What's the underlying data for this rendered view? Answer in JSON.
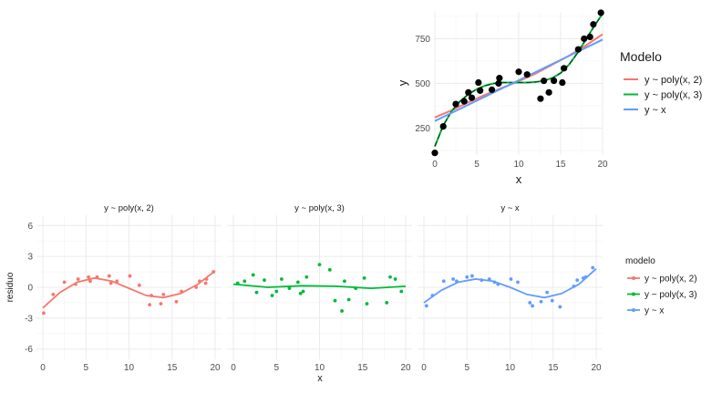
{
  "chart_data": [
    {
      "type": "scatter",
      "xlabel": "x",
      "ylabel": "y",
      "xlim": [
        0,
        20
      ],
      "ylim": [
        100,
        900
      ],
      "x_ticks": [
        0,
        5,
        10,
        15,
        20
      ],
      "y_ticks": [
        250,
        500,
        750
      ],
      "grid": true,
      "legend": {
        "title": "Modelo",
        "position": "right",
        "entries": [
          "y ~ poly(x, 2)",
          "y ~ poly(x, 3)",
          "y ~ x"
        ]
      },
      "colors": {
        "y ~ poly(x, 2)": "#F8766D",
        "y ~ poly(x, 3)": "#00BA38",
        "y ~ x": "#619CFF",
        "points": "#000000"
      },
      "points": [
        {
          "x": 0,
          "y": 112
        },
        {
          "x": 1,
          "y": 260
        },
        {
          "x": 2.5,
          "y": 385
        },
        {
          "x": 3.5,
          "y": 400
        },
        {
          "x": 4,
          "y": 450
        },
        {
          "x": 4.4,
          "y": 420
        },
        {
          "x": 5.2,
          "y": 505
        },
        {
          "x": 5.4,
          "y": 460
        },
        {
          "x": 6.8,
          "y": 465
        },
        {
          "x": 7.6,
          "y": 500
        },
        {
          "x": 7.7,
          "y": 530
        },
        {
          "x": 10,
          "y": 565
        },
        {
          "x": 11,
          "y": 550
        },
        {
          "x": 12.6,
          "y": 415
        },
        {
          "x": 13,
          "y": 515
        },
        {
          "x": 13.6,
          "y": 450
        },
        {
          "x": 14.2,
          "y": 515
        },
        {
          "x": 15.2,
          "y": 505
        },
        {
          "x": 15.4,
          "y": 585
        },
        {
          "x": 17.1,
          "y": 690
        },
        {
          "x": 17.8,
          "y": 750
        },
        {
          "x": 18.5,
          "y": 760
        },
        {
          "x": 18.9,
          "y": 830
        },
        {
          "x": 19.8,
          "y": 895
        }
      ],
      "series": [
        {
          "name": "y ~ poly(x, 2)",
          "x": [
            0,
            2,
            4,
            6,
            8,
            10,
            12,
            14,
            16,
            18,
            20
          ],
          "y": [
            310,
            350,
            395,
            437,
            475,
            512,
            555,
            605,
            655,
            712,
            775
          ]
        },
        {
          "name": "y ~ poly(x, 3)",
          "x": [
            0,
            1,
            2,
            3,
            4,
            5,
            6,
            7,
            8,
            9,
            10,
            11,
            12,
            13,
            14,
            15,
            16,
            17,
            18,
            19,
            20
          ],
          "y": [
            148,
            265,
            345,
            400,
            440,
            468,
            488,
            500,
            505,
            505,
            505,
            505,
            508,
            515,
            530,
            558,
            605,
            670,
            745,
            820,
            890
          ]
        },
        {
          "name": "y ~ x",
          "x": [
            0,
            20
          ],
          "y": [
            290,
            745
          ]
        }
      ]
    },
    {
      "type": "scatter",
      "facets": [
        "y ~ poly(x, 2)",
        "y ~ poly(x, 3)",
        "y ~ x"
      ],
      "xlabel": "x",
      "ylabel": "residuo",
      "xlim": [
        0,
        20
      ],
      "ylim": [
        -7,
        7
      ],
      "x_ticks": [
        0,
        5,
        10,
        15,
        20
      ],
      "y_ticks": [
        -6,
        -3,
        0,
        3,
        6
      ],
      "grid": true,
      "legend": {
        "title": "modelo",
        "position": "right",
        "entries": [
          "y ~ poly(x, 2)",
          "y ~ poly(x, 3)",
          "y ~ x"
        ]
      },
      "colors": {
        "y ~ poly(x, 2)": "#F8766D",
        "y ~ poly(x, 3)": "#00BA38",
        "y ~ x": "#619CFF"
      },
      "panels": [
        {
          "name": "y ~ poly(x, 2)",
          "points": [
            {
              "x": 0.1,
              "y": -2.5
            },
            {
              "x": 1.2,
              "y": -0.7
            },
            {
              "x": 2.5,
              "y": 0.5
            },
            {
              "x": 3.8,
              "y": 0.3
            },
            {
              "x": 4.1,
              "y": 0.8
            },
            {
              "x": 5.3,
              "y": 1.0
            },
            {
              "x": 5.5,
              "y": 0.6
            },
            {
              "x": 6.3,
              "y": 1.0
            },
            {
              "x": 7.7,
              "y": 1.1
            },
            {
              "x": 7.9,
              "y": 0.4
            },
            {
              "x": 8.6,
              "y": 0.6
            },
            {
              "x": 10.1,
              "y": 1.1
            },
            {
              "x": 11.2,
              "y": 0.2
            },
            {
              "x": 12.4,
              "y": -1.7
            },
            {
              "x": 12.6,
              "y": -0.8
            },
            {
              "x": 13.7,
              "y": -1.6
            },
            {
              "x": 14.0,
              "y": -0.7
            },
            {
              "x": 15.5,
              "y": -1.4
            },
            {
              "x": 16.1,
              "y": -0.4
            },
            {
              "x": 17.8,
              "y": 0.0
            },
            {
              "x": 18.2,
              "y": 0.6
            },
            {
              "x": 18.9,
              "y": 0.4
            },
            {
              "x": 19.0,
              "y": 0.8
            },
            {
              "x": 19.8,
              "y": 1.5
            }
          ],
          "curve": {
            "x": [
              0,
              2,
              4,
              6,
              8,
              10,
              12,
              14,
              16,
              18,
              20
            ],
            "y": [
              -2.0,
              -0.5,
              0.5,
              0.9,
              0.6,
              -0.1,
              -0.8,
              -1.0,
              -0.6,
              0.3,
              1.6
            ]
          }
        },
        {
          "name": "y ~ poly(x, 3)",
          "points": [
            {
              "x": 0.5,
              "y": 0.4
            },
            {
              "x": 1.3,
              "y": 0.6
            },
            {
              "x": 2.3,
              "y": 1.2
            },
            {
              "x": 2.7,
              "y": -0.5
            },
            {
              "x": 3.6,
              "y": 0.7
            },
            {
              "x": 4.5,
              "y": -0.8
            },
            {
              "x": 5.0,
              "y": -0.4
            },
            {
              "x": 5.6,
              "y": 0.8
            },
            {
              "x": 6.5,
              "y": -0.1
            },
            {
              "x": 7.5,
              "y": 0.5
            },
            {
              "x": 7.8,
              "y": -0.6
            },
            {
              "x": 8.1,
              "y": -0.4
            },
            {
              "x": 8.5,
              "y": 1.0
            },
            {
              "x": 10.0,
              "y": 2.2
            },
            {
              "x": 11.2,
              "y": 1.7
            },
            {
              "x": 11.8,
              "y": -1.3
            },
            {
              "x": 12.6,
              "y": -2.3
            },
            {
              "x": 12.9,
              "y": 0.6
            },
            {
              "x": 13.4,
              "y": -1.2
            },
            {
              "x": 14.2,
              "y": -0.1
            },
            {
              "x": 15.2,
              "y": 0.9
            },
            {
              "x": 15.5,
              "y": -1.6
            },
            {
              "x": 17.8,
              "y": -1.5
            },
            {
              "x": 18.2,
              "y": 1.0
            },
            {
              "x": 18.8,
              "y": 0.8
            },
            {
              "x": 19.5,
              "y": -0.4
            }
          ],
          "curve": {
            "x": [
              0,
              4,
              8,
              12,
              16,
              20
            ],
            "y": [
              0.3,
              0.0,
              0.15,
              0.1,
              -0.1,
              0.1
            ]
          }
        },
        {
          "name": "y ~ x",
          "points": [
            {
              "x": 0.3,
              "y": -1.8
            },
            {
              "x": 1.0,
              "y": -0.8
            },
            {
              "x": 2.3,
              "y": 0.6
            },
            {
              "x": 3.4,
              "y": 0.8
            },
            {
              "x": 3.8,
              "y": 0.6
            },
            {
              "x": 5.0,
              "y": 1.0
            },
            {
              "x": 5.6,
              "y": 1.1
            },
            {
              "x": 6.7,
              "y": 0.7
            },
            {
              "x": 7.6,
              "y": 0.8
            },
            {
              "x": 8.2,
              "y": 0.5
            },
            {
              "x": 8.6,
              "y": 0.3
            },
            {
              "x": 10.1,
              "y": 0.8
            },
            {
              "x": 10.9,
              "y": 0.5
            },
            {
              "x": 12.3,
              "y": -1.5
            },
            {
              "x": 12.6,
              "y": -1.8
            },
            {
              "x": 13.6,
              "y": -1.4
            },
            {
              "x": 14.3,
              "y": -0.5
            },
            {
              "x": 14.9,
              "y": -1.3
            },
            {
              "x": 15.8,
              "y": -1.9
            },
            {
              "x": 17.4,
              "y": 0.1
            },
            {
              "x": 17.8,
              "y": 0.7
            },
            {
              "x": 18.5,
              "y": 0.9
            },
            {
              "x": 18.8,
              "y": 1.0
            },
            {
              "x": 19.6,
              "y": 1.9
            }
          ],
          "curve": {
            "x": [
              0,
              2,
              4,
              6,
              8,
              10,
              12,
              14,
              16,
              18,
              20
            ],
            "y": [
              -1.5,
              -0.3,
              0.5,
              0.8,
              0.6,
              0.0,
              -0.7,
              -1.0,
              -0.6,
              0.3,
              1.8
            ]
          }
        }
      ]
    }
  ]
}
